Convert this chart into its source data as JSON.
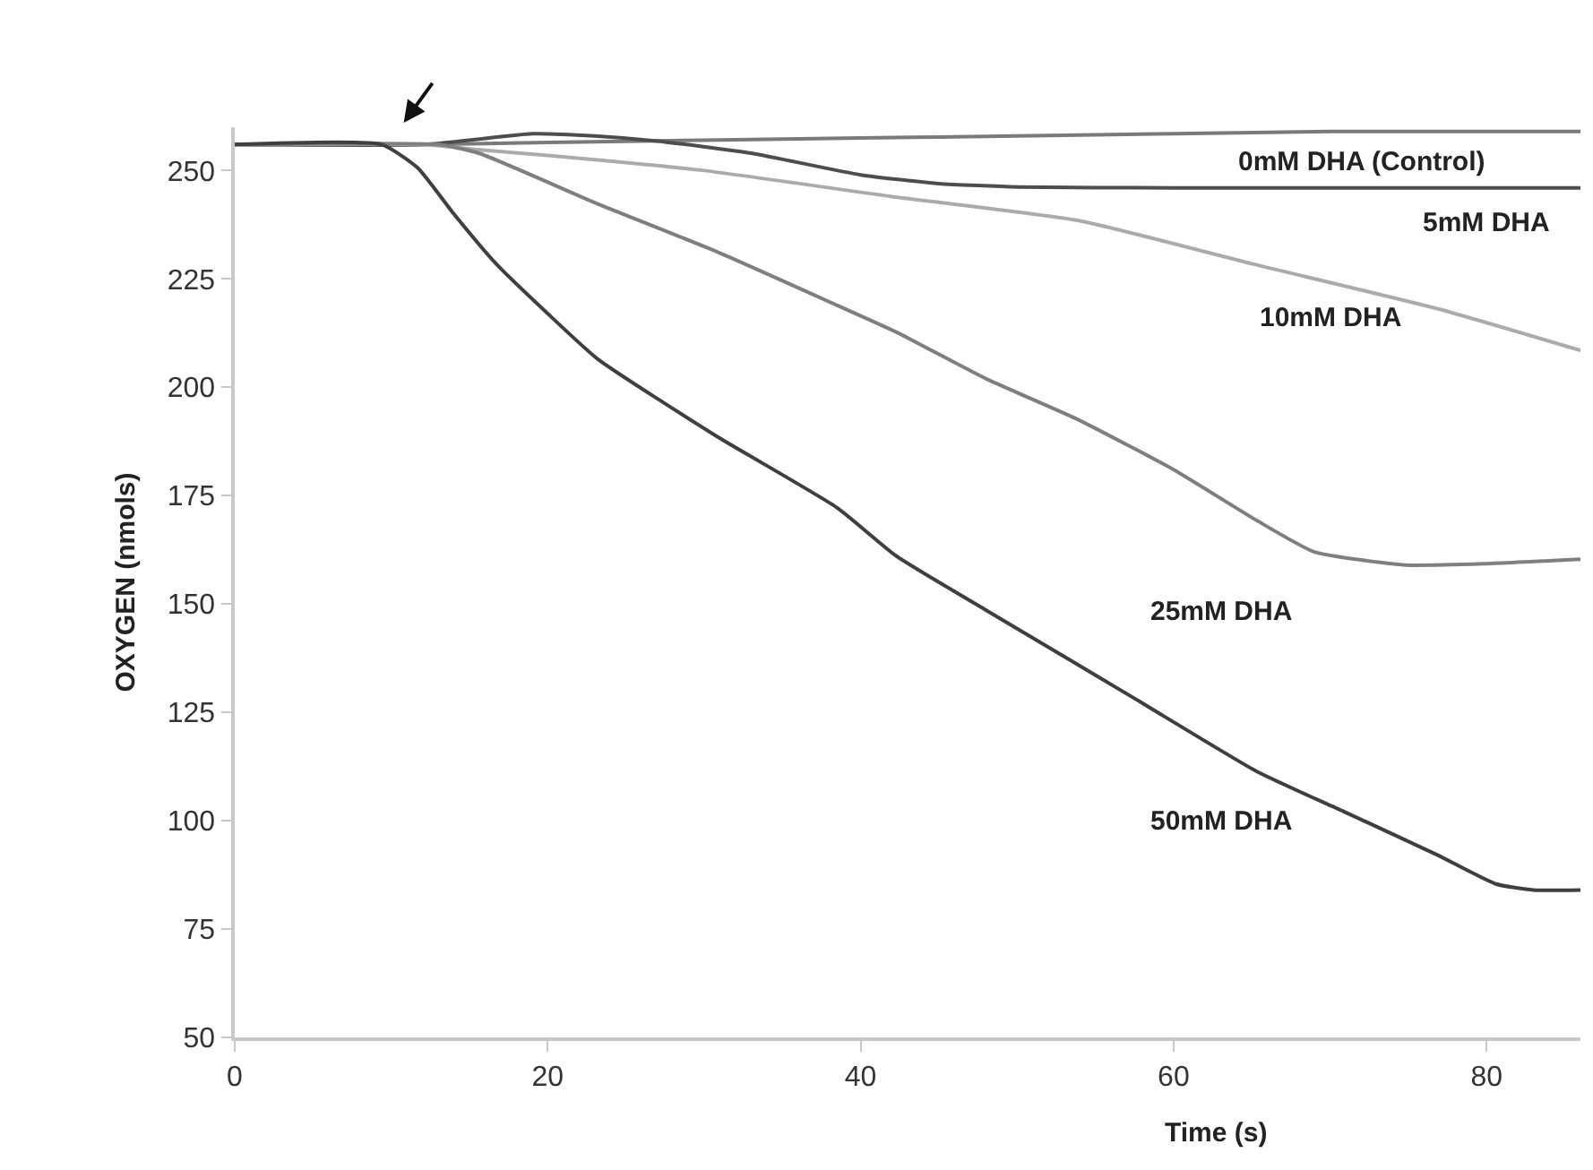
{
  "chart_data": {
    "type": "line",
    "xlabel": "Time (s)",
    "ylabel": "OXYGEN (nmols)",
    "xlim": [
      0,
      86
    ],
    "xticks": [
      0,
      20,
      40,
      60,
      80
    ],
    "ylim": [
      50,
      260
    ],
    "yticks": [
      50,
      75,
      100,
      125,
      150,
      175,
      200,
      225,
      250
    ],
    "grid": false,
    "legend": false,
    "marker": "none",
    "line_style": "solid",
    "series": [
      {
        "name": "0mM DHA (Control)",
        "color": "#7a7a7a",
        "x": [
          0,
          12,
          20,
          30,
          40,
          50,
          60,
          70,
          86
        ],
        "values": [
          256,
          256,
          256.5,
          257,
          257.5,
          258,
          258.5,
          259,
          259
        ]
      },
      {
        "name": "5mM DHA",
        "color": "#4d4d4d",
        "x": [
          0,
          12,
          15,
          19,
          23,
          27,
          33,
          40,
          45,
          50,
          60,
          86
        ],
        "values": [
          256,
          256,
          257,
          258.5,
          258,
          256.8,
          254,
          249,
          247,
          246.2,
          246,
          246
        ]
      },
      {
        "name": "10mM DHA",
        "color": "#ababab",
        "x": [
          0,
          12,
          15,
          20,
          30,
          42,
          54,
          65,
          77,
          86
        ],
        "values": [
          256,
          256,
          255,
          253.5,
          250,
          244,
          238.4,
          228.5,
          218,
          208.5
        ]
      },
      {
        "name": "25mM DHA",
        "color": "#7f7f7f",
        "x": [
          0,
          13,
          15.6,
          23.2,
          30.8,
          38.5,
          42.3,
          48,
          53.8,
          60,
          65.3,
          69,
          74.8,
          80,
          86
        ],
        "values": [
          256,
          256,
          254,
          242.3,
          231.3,
          218.9,
          212.7,
          202,
          192.7,
          181,
          169.3,
          162,
          159,
          159.3,
          160.3
        ]
      },
      {
        "name": "50mM DHA",
        "color": "#3f3f3f",
        "x": [
          0,
          9.4,
          11.7,
          14,
          16.7,
          20,
          23.2,
          30.8,
          38.5,
          42.3,
          48,
          57.6,
          65.3,
          71,
          76.8,
          80.6,
          83,
          86
        ],
        "values": [
          256,
          256,
          250.6,
          240,
          228.5,
          217,
          206.5,
          188.7,
          172.2,
          161,
          148.6,
          128,
          111.4,
          101.9,
          92.2,
          85.4,
          84,
          84
        ]
      }
    ]
  }
}
